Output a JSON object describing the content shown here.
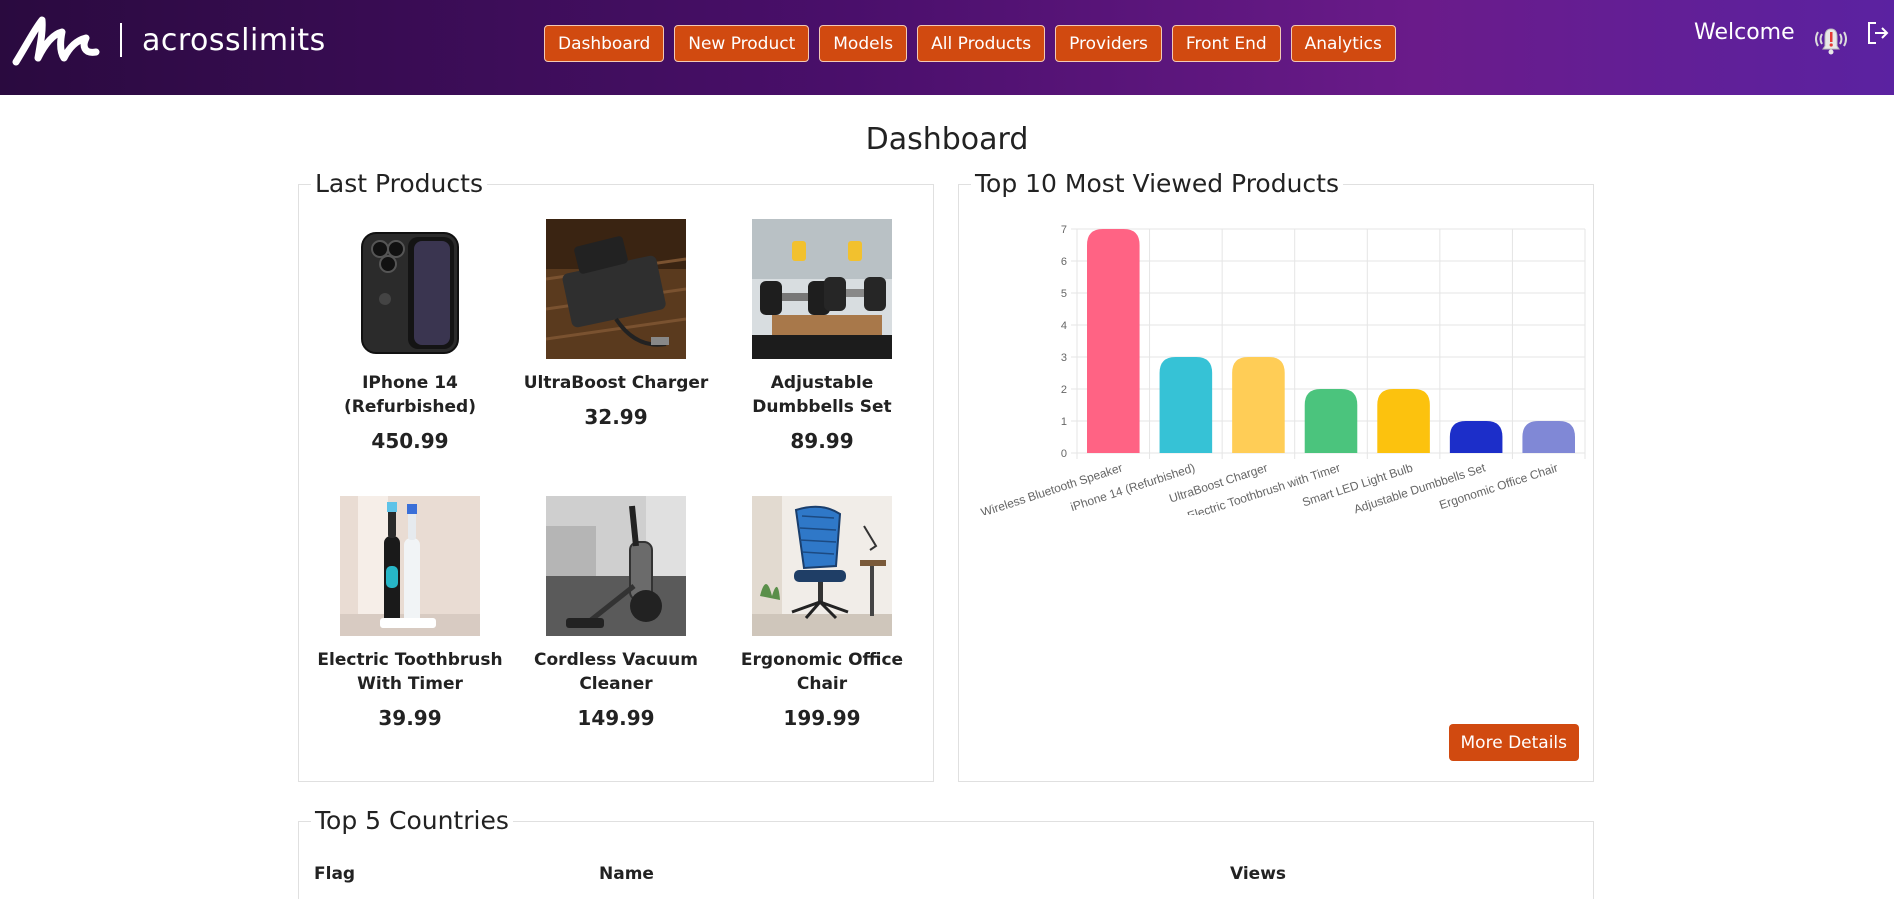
{
  "header": {
    "brand": "acrosslimits",
    "nav": [
      "Dashboard",
      "New Product",
      "Models",
      "All Products",
      "Providers",
      "Front End",
      "Analytics"
    ],
    "welcome": "Welcome",
    "icons": {
      "bell": "alarm-bell-icon",
      "logout": "logout-icon"
    }
  },
  "page": {
    "title": "Dashboard"
  },
  "last_products": {
    "title": "Last Products",
    "items": [
      {
        "name": "IPhone 14 (Refurbished)",
        "price": "450.99"
      },
      {
        "name": "UltraBoost Charger",
        "price": "32.99"
      },
      {
        "name": "Adjustable Dumbbells Set",
        "price": "89.99"
      },
      {
        "name": "Electric Toothbrush With Timer",
        "price": "39.99"
      },
      {
        "name": "Cordless Vacuum Cleaner",
        "price": "149.99"
      },
      {
        "name": "Ergonomic Office Chair",
        "price": "199.99"
      }
    ]
  },
  "top_viewed": {
    "title": "Top 10 Most Viewed Products",
    "more_button": "More Details"
  },
  "chart_data": {
    "type": "bar",
    "categories": [
      "Wireless Bluetooth Speaker",
      "iPhone 14 (Refurbished)",
      "UltraBoost Charger",
      "Electric Toothbrush with Timer",
      "Smart LED Light Bulb",
      "Adjustable Dumbbells Set",
      "Ergonomic Office Chair"
    ],
    "values": [
      7,
      3,
      3,
      2,
      2,
      1,
      1
    ],
    "colors": [
      "#ff6384",
      "#36c2d6",
      "#ffcd56",
      "#4bc47d",
      "#fcc20e",
      "#1c2ec9",
      "#8088d6"
    ],
    "ylim": [
      0,
      7
    ],
    "yticks": [
      "0",
      "1",
      "2",
      "3",
      "4",
      "5",
      "6",
      "7"
    ],
    "grid": true,
    "title": "",
    "xlabel": "",
    "ylabel": ""
  },
  "countries": {
    "title": "Top 5 Countries",
    "columns": [
      "Flag",
      "Name",
      "Views"
    ]
  }
}
